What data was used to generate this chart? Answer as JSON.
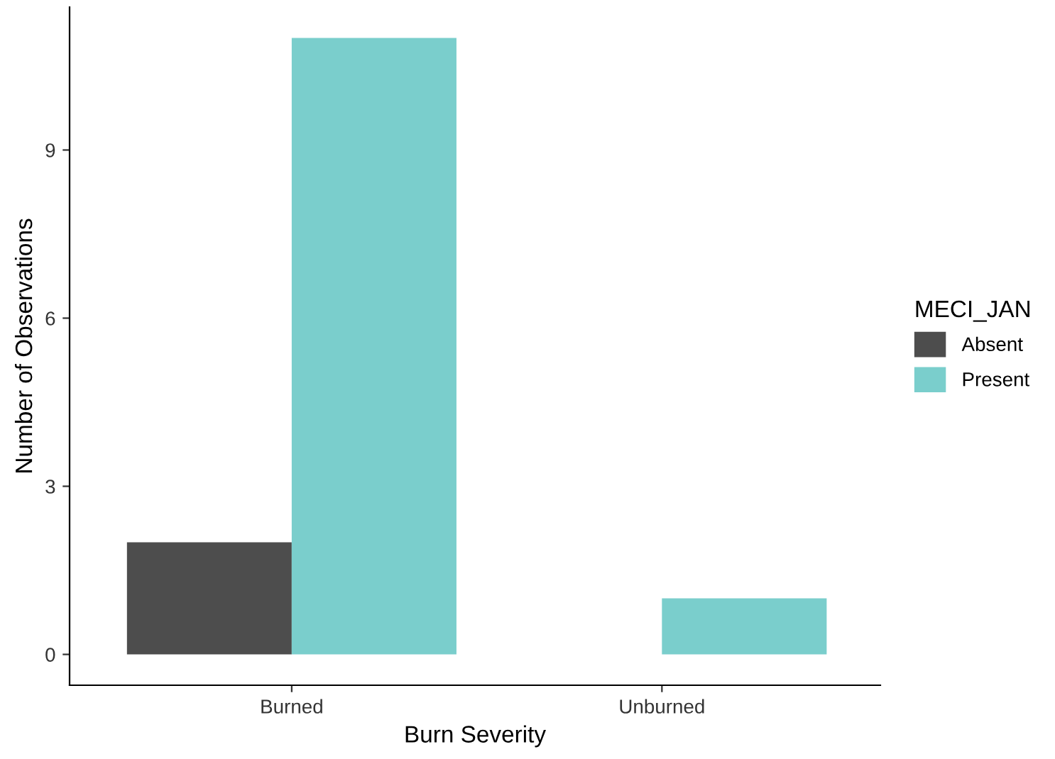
{
  "chart_data": {
    "type": "bar",
    "xlabel": "Burn Severity",
    "ylabel": "Number of Observations",
    "legend_title": "MECI_JAN",
    "categories": [
      "Burned",
      "Unburned"
    ],
    "series": [
      {
        "name": "Absent",
        "color": "#4d4d4d",
        "values": [
          2,
          null
        ]
      },
      {
        "name": "Present",
        "color": "#7acecc",
        "values": [
          11,
          1
        ]
      }
    ],
    "ylim": [
      -0.55,
      11.55
    ],
    "yticks": [
      0,
      3,
      6,
      9
    ],
    "grid": false,
    "legend": "right"
  }
}
